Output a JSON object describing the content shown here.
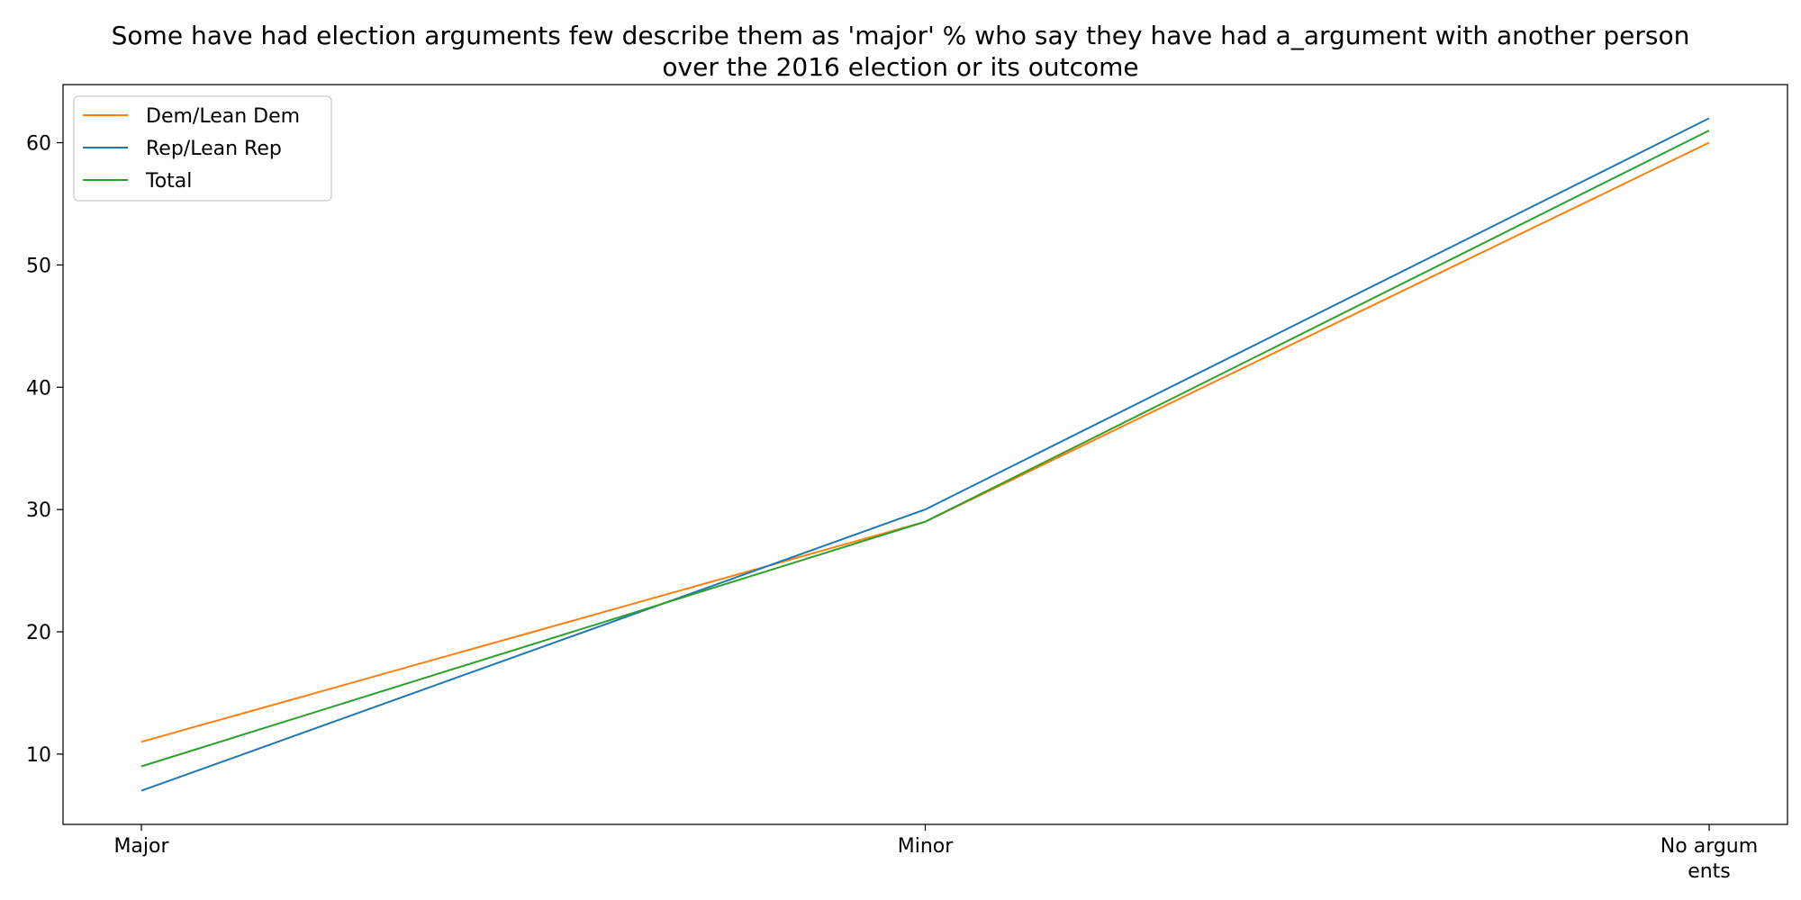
{
  "chart_data": {
    "type": "line",
    "title_line1": "Some have had election arguments few describe them as 'major' % who say they have had a_argument with another person",
    "title_line2": "over the 2016 election or its outcome",
    "categories": [
      "Major",
      "Minor",
      "No argum|ents"
    ],
    "series": [
      {
        "name": "Dem/Lean Dem",
        "values": [
          11,
          29,
          60
        ],
        "color": "#ff7f0e"
      },
      {
        "name": "Rep/Lean Rep",
        "values": [
          7,
          30,
          62
        ],
        "color": "#1f77b4"
      },
      {
        "name": "Total",
        "values": [
          9,
          29,
          61
        ],
        "color": "#2ca02c"
      }
    ],
    "xlabel": "",
    "ylabel": "",
    "ylim": [
      4.25,
      64.75
    ],
    "yticks": [
      10,
      20,
      30,
      40,
      50,
      60
    ],
    "grid": false,
    "legend_position": "top-left"
  }
}
